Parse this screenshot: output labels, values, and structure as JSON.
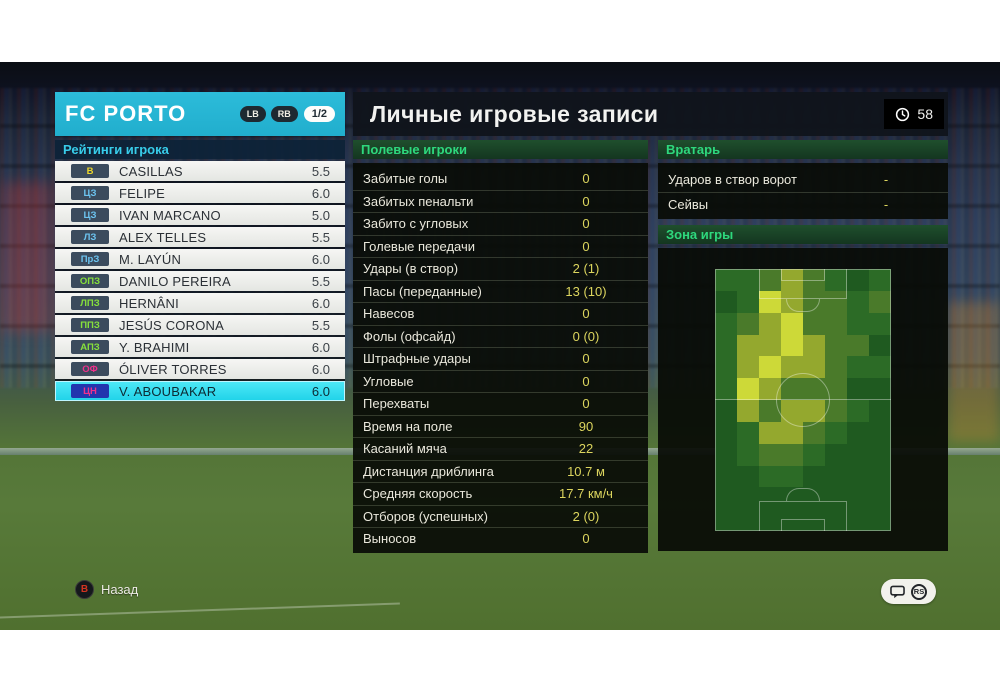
{
  "team_panel": {
    "team_name": "FC PORTO",
    "shoulder_buttons": [
      "LB",
      "RB"
    ],
    "page_indicator": "1/2",
    "list_header": "Рейтинги игрока",
    "players": [
      {
        "pos": "В",
        "role": "gk",
        "name": "CASILLAS",
        "rating": "5.5",
        "selected": false
      },
      {
        "pos": "ЦЗ",
        "role": "df",
        "name": "FELIPE",
        "rating": "6.0",
        "selected": false
      },
      {
        "pos": "ЦЗ",
        "role": "df",
        "name": "IVAN MARCANO",
        "rating": "5.0",
        "selected": false
      },
      {
        "pos": "ЛЗ",
        "role": "df",
        "name": "ALEX TELLES",
        "rating": "5.5",
        "selected": false
      },
      {
        "pos": "ПрЗ",
        "role": "df",
        "name": "M. LAYÚN",
        "rating": "6.0",
        "selected": false
      },
      {
        "pos": "ОПЗ",
        "role": "mf",
        "name": "DANILO PEREIRA",
        "rating": "5.5",
        "selected": false
      },
      {
        "pos": "ЛПЗ",
        "role": "mf",
        "name": "HERNÂNI",
        "rating": "6.0",
        "selected": false
      },
      {
        "pos": "ППЗ",
        "role": "mf",
        "name": "JESÚS CORONA",
        "rating": "5.5",
        "selected": false
      },
      {
        "pos": "АПЗ",
        "role": "mf",
        "name": "Y. BRAHIMI",
        "rating": "6.0",
        "selected": false
      },
      {
        "pos": "ОФ",
        "role": "fw",
        "name": "ÓLIVER TORRES",
        "rating": "6.0",
        "selected": false
      },
      {
        "pos": "ЦН",
        "role": "fw",
        "name": "V. ABOUBAKAR",
        "rating": "6.0",
        "selected": true
      }
    ]
  },
  "main": {
    "title": "Личные игровые записи",
    "match_time": "58",
    "field_players": {
      "header": "Полевые игроки",
      "stats": [
        {
          "label": "Забитые голы",
          "value": "0"
        },
        {
          "label": "Забитых пенальти",
          "value": "0"
        },
        {
          "label": "Забито с угловых",
          "value": "0"
        },
        {
          "label": "Голевые передачи",
          "value": "0"
        },
        {
          "label": "Удары (в створ)",
          "value": "2 (1)"
        },
        {
          "label": "Пасы (переданные)",
          "value": "13 (10)"
        },
        {
          "label": "Навесов",
          "value": "0"
        },
        {
          "label": "Фолы (офсайд)",
          "value": "0 (0)"
        },
        {
          "label": "Штрафные удары",
          "value": "0"
        },
        {
          "label": "Угловые",
          "value": "0"
        },
        {
          "label": "Перехваты",
          "value": "0"
        },
        {
          "label": "Время на поле",
          "value": "90"
        },
        {
          "label": "Касаний мяча",
          "value": "22"
        },
        {
          "label": "Дистанция дриблинга",
          "value": "10.7 м"
        },
        {
          "label": "Средняя скорость",
          "value": "17.7 км/ч"
        },
        {
          "label": "Отборов (успешных)",
          "value": "2 (0)"
        },
        {
          "label": "Выносов",
          "value": "0"
        }
      ]
    },
    "goalkeeper": {
      "header": "Вратарь",
      "stats": [
        {
          "label": "Ударов в створ ворот",
          "value": "-"
        },
        {
          "label": "Сейвы",
          "value": "-"
        }
      ]
    },
    "zone": {
      "header": "Зона игры"
    }
  },
  "footer": {
    "back_button_glyph": "B",
    "back_label": "Назад",
    "right_stick_label": "RS"
  },
  "icons": {
    "clock": "clock-icon",
    "chat_bubble": "chat-icon",
    "right_stick": "rs-icon",
    "b_button": "b-button-icon"
  },
  "colors": {
    "accent_cyan": "#25b6d5",
    "selected_row_cyan": "#2fe0f0",
    "section_header_green": "#2ed87d",
    "stat_value_yellow": "#dcd55e",
    "pos_gk": "#ecd62a",
    "pos_df": "#6cc4f0",
    "pos_mf": "#86e03c",
    "pos_fw": "#f0308c"
  },
  "heatmap": {
    "type": "heatmap",
    "title": "Зона игры",
    "columns": 8,
    "rows": 12,
    "palette": [
      "#1f5a20",
      "#2c6b26",
      "#4a7a2a",
      "#94a82e",
      "#cdd938"
    ],
    "grid": [
      [
        1,
        1,
        2,
        3,
        2,
        1,
        0,
        1
      ],
      [
        0,
        1,
        4,
        3,
        2,
        2,
        1,
        2
      ],
      [
        1,
        2,
        3,
        4,
        2,
        2,
        1,
        1
      ],
      [
        1,
        3,
        3,
        4,
        3,
        2,
        2,
        0
      ],
      [
        1,
        3,
        4,
        3,
        3,
        2,
        1,
        1
      ],
      [
        1,
        4,
        3,
        2,
        2,
        2,
        0,
        0
      ],
      [
        0,
        3,
        2,
        3,
        3,
        2,
        1,
        0
      ],
      [
        0,
        1,
        3,
        3,
        2,
        1,
        0,
        0
      ],
      [
        0,
        1,
        2,
        2,
        1,
        0,
        0,
        0
      ],
      [
        0,
        0,
        1,
        1,
        0,
        0,
        0,
        0
      ],
      [
        0,
        0,
        0,
        0,
        0,
        0,
        0,
        0
      ],
      [
        0,
        0,
        0,
        0,
        0,
        0,
        0,
        0
      ]
    ]
  }
}
